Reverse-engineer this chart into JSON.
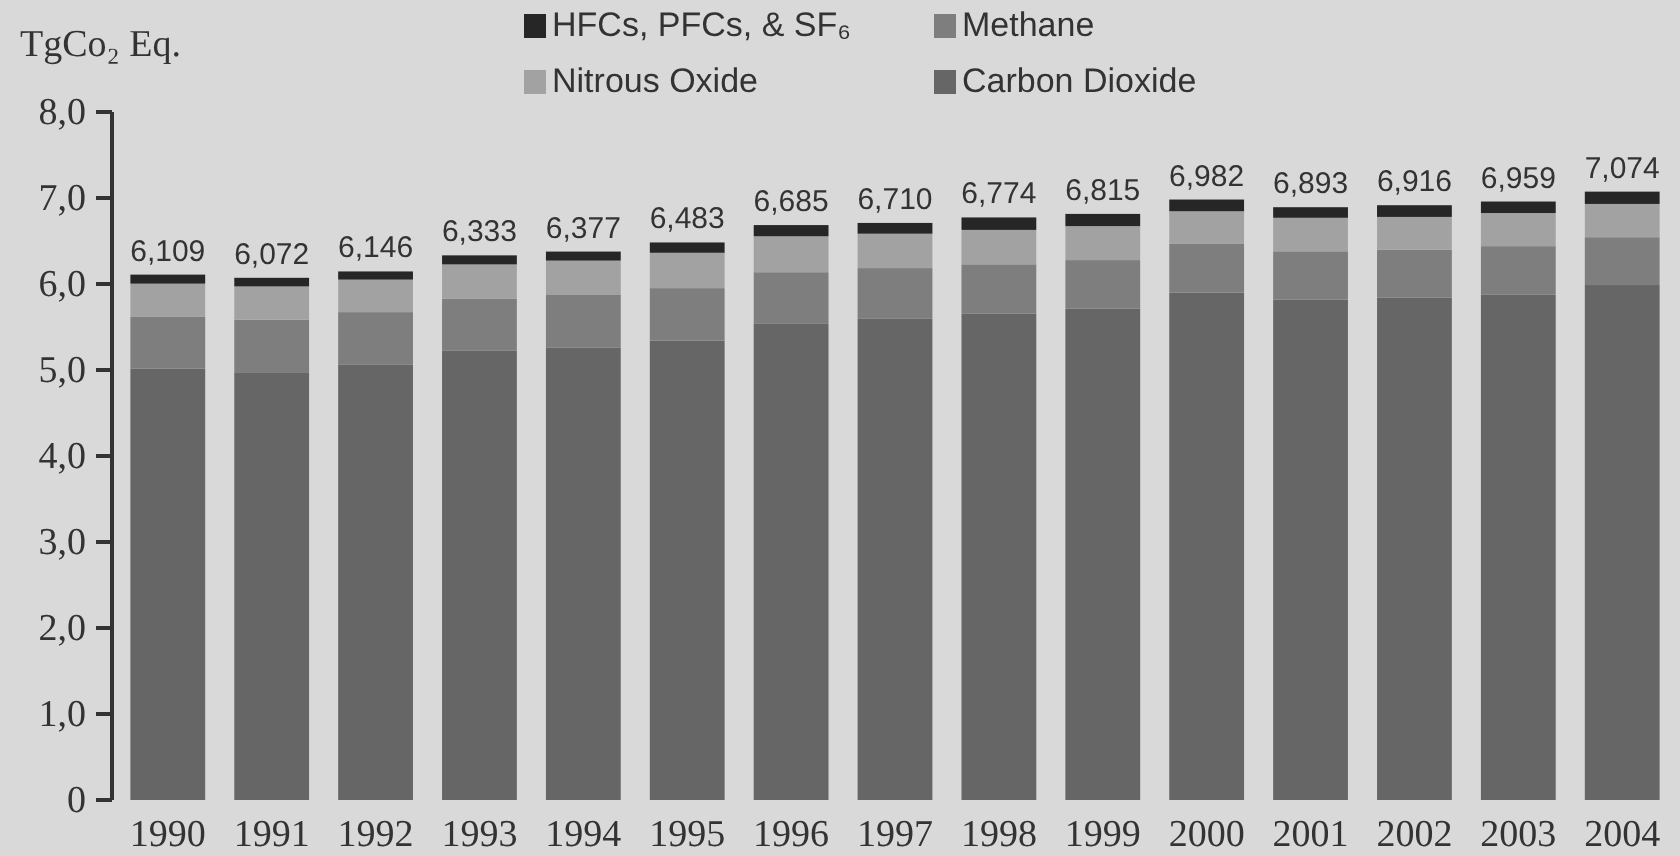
{
  "chart_data": {
    "type": "bar",
    "stacked": true,
    "ylabel": "TgCo₂ Eq.",
    "categories": [
      "1990",
      "1991",
      "1992",
      "1993",
      "1994",
      "1995",
      "1996",
      "1997",
      "1998",
      "1999",
      "2000",
      "2001",
      "2002",
      "2003",
      "2004"
    ],
    "series": [
      {
        "name": "Carbon Dioxide",
        "color": "#666666",
        "values": [
          5.017,
          4.974,
          5.06,
          5.223,
          5.258,
          5.343,
          5.536,
          5.6,
          5.654,
          5.713,
          5.9,
          5.82,
          5.84,
          5.875,
          5.988
        ]
      },
      {
        "name": "Methane",
        "color": "#7e7e7e",
        "values": [
          0.605,
          0.611,
          0.613,
          0.608,
          0.614,
          0.609,
          0.601,
          0.585,
          0.575,
          0.565,
          0.566,
          0.56,
          0.56,
          0.565,
          0.556
        ]
      },
      {
        "name": "Nitrous Oxide",
        "color": "#a2a2a2",
        "values": [
          0.382,
          0.387,
          0.378,
          0.397,
          0.4,
          0.411,
          0.418,
          0.4,
          0.4,
          0.395,
          0.38,
          0.39,
          0.38,
          0.385,
          0.387
        ]
      },
      {
        "name": "HFCs, PFCs, & SF₆",
        "color": "#262626",
        "values": [
          0.105,
          0.1,
          0.095,
          0.105,
          0.105,
          0.12,
          0.13,
          0.125,
          0.145,
          0.142,
          0.136,
          0.123,
          0.136,
          0.134,
          0.143
        ]
      }
    ],
    "totals": [
      "6,109",
      "6,072",
      "6,146",
      "6,333",
      "6,377",
      "6,483",
      "6,685",
      "6,710",
      "6,774",
      "6,815",
      "6,982",
      "6,893",
      "6,916",
      "6,959",
      "7,074"
    ],
    "ylim": [
      0,
      8
    ],
    "yticks": [
      {
        "value": 0,
        "label": "0"
      },
      {
        "value": 1,
        "label": "1,0"
      },
      {
        "value": 2,
        "label": "2,0"
      },
      {
        "value": 3,
        "label": "3,0"
      },
      {
        "value": 4,
        "label": "4,0"
      },
      {
        "value": 5,
        "label": "5,0"
      },
      {
        "value": 6,
        "label": "6,0"
      },
      {
        "value": 7,
        "label": "7,0"
      },
      {
        "value": 8,
        "label": "8,0"
      }
    ],
    "legend": "top",
    "grid": false
  }
}
